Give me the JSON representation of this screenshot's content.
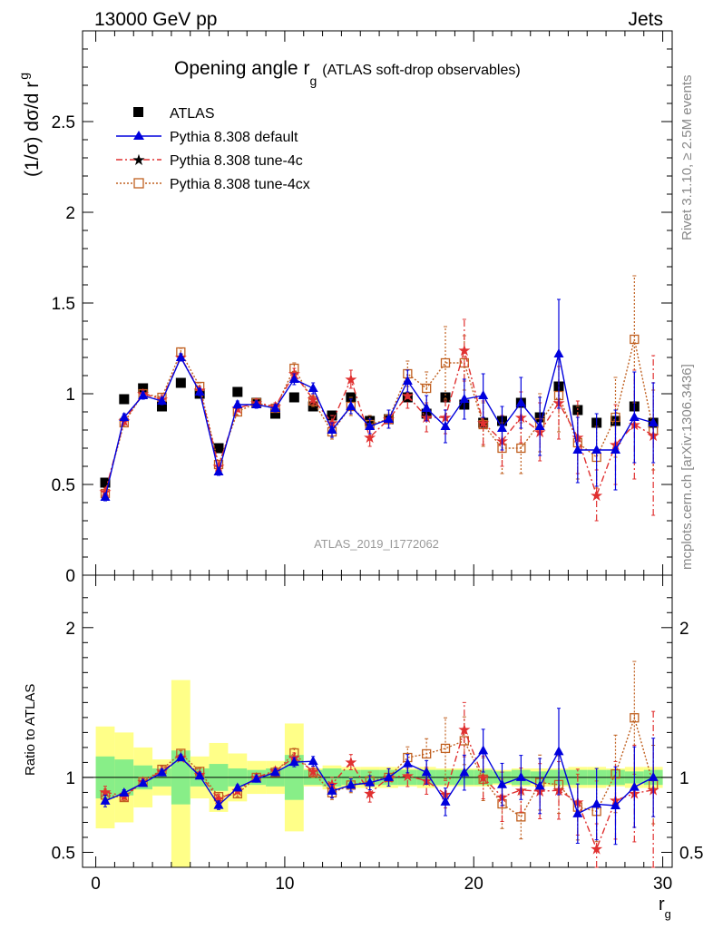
{
  "header": {
    "left": "13000 GeV pp",
    "right": "Jets"
  },
  "title": {
    "main": "Opening angle r",
    "sub": "g",
    "suffix": "(ATLAS soft-drop observables)"
  },
  "axes": {
    "ylabel_main_pre": "(1/σ) dσ/d r",
    "ylabel_main_sub": "g",
    "ylabel_ratio": "Ratio to ATLAS",
    "xlabel": "r",
    "xlabel_sub": "g"
  },
  "side_text": {
    "rivet": "Rivet 3.1.10, ≥ 2.5M events",
    "mcplots": "mcplots.cern.ch [arXiv:1306.3436]"
  },
  "watermark": "ATLAS_2019_I1772062",
  "legend": [
    {
      "name": "ATLAS",
      "key": "atlas"
    },
    {
      "name": "Pythia 8.308 default",
      "key": "def"
    },
    {
      "name": "Pythia 8.308 tune-4c",
      "key": "t4c"
    },
    {
      "name": "Pythia 8.308 tune-4cx",
      "key": "t4cx"
    }
  ],
  "colors": {
    "data": "#000000",
    "default": "#0000dd",
    "tune4c": "#e03030",
    "tune4cx": "#c06020",
    "band_inner": "#88ee88",
    "band_outer": "#ffff88"
  },
  "chart_data": {
    "type": "scatter",
    "x": [
      0.5,
      1.5,
      2.5,
      3.5,
      4.5,
      5.5,
      6.5,
      7.5,
      8.5,
      9.5,
      10.5,
      11.5,
      12.5,
      13.5,
      14.5,
      15.5,
      16.5,
      17.5,
      18.5,
      19.5,
      20.5,
      21.5,
      22.5,
      23.5,
      24.5,
      25.5,
      26.5,
      27.5,
      28.5,
      29.5
    ],
    "main_panel": {
      "xlim": [
        -0.7,
        30.5
      ],
      "ylim": [
        0,
        3.0
      ],
      "yticks": [
        0,
        0.5,
        1,
        1.5,
        2,
        2.5
      ],
      "ytick_labels": [
        "0",
        "0.5",
        "1",
        "1.5",
        "2",
        "2.5"
      ]
    },
    "ratio_panel": {
      "ylim": [
        0.4,
        2.35
      ],
      "yticks": [
        0.5,
        1,
        2
      ],
      "ytick_labels": [
        "0.5",
        "1",
        "2"
      ]
    },
    "xticks": [
      0,
      10,
      20,
      30
    ],
    "xtick_labels": [
      "0",
      "10",
      "20",
      "30"
    ],
    "atlas": [
      0.51,
      0.97,
      1.03,
      0.93,
      1.06,
      1.0,
      0.7,
      1.01,
      0.95,
      0.89,
      0.98,
      0.93,
      0.88,
      0.98,
      0.85,
      0.86,
      0.98,
      0.89,
      0.98,
      0.94,
      0.84,
      0.85,
      0.95,
      0.87,
      1.04,
      0.91,
      0.84,
      0.85,
      0.93,
      0.84
    ],
    "band_inner": [
      0.14,
      0.12,
      0.08,
      0.06,
      0.18,
      0.06,
      0.09,
      0.06,
      0.05,
      0.06,
      0.15,
      0.05,
      0.06,
      0.05,
      0.05,
      0.05,
      0.05,
      0.05,
      0.05,
      0.05,
      0.05,
      0.04,
      0.05,
      0.04,
      0.05,
      0.05,
      0.05,
      0.05,
      0.04,
      0.05
    ],
    "band_outer": [
      0.34,
      0.3,
      0.2,
      0.12,
      0.65,
      0.14,
      0.23,
      0.16,
      0.11,
      0.11,
      0.36,
      0.06,
      0.08,
      0.07,
      0.07,
      0.07,
      0.06,
      0.07,
      0.06,
      0.06,
      0.06,
      0.05,
      0.06,
      0.06,
      0.06,
      0.07,
      0.07,
      0.06,
      0.07,
      0.07
    ],
    "series": [
      {
        "name": "Pythia 8.308 default",
        "key": "def",
        "values": [
          0.43,
          0.87,
          0.99,
          0.96,
          1.2,
          1.01,
          0.57,
          0.94,
          0.94,
          0.92,
          1.08,
          1.03,
          0.8,
          0.93,
          0.82,
          0.86,
          1.07,
          0.92,
          0.82,
          0.97,
          0.99,
          0.81,
          0.95,
          0.82,
          1.22,
          0.69,
          0.69,
          0.69,
          0.87,
          0.84
        ],
        "errors": [
          0.02,
          0.02,
          0.02,
          0.02,
          0.02,
          0.02,
          0.02,
          0.02,
          0.02,
          0.02,
          0.03,
          0.03,
          0.04,
          0.04,
          0.04,
          0.05,
          0.06,
          0.07,
          0.09,
          0.11,
          0.12,
          0.12,
          0.14,
          0.16,
          0.3,
          0.18,
          0.2,
          0.22,
          0.25,
          0.22
        ]
      },
      {
        "name": "Pythia 8.308 tune-4c",
        "key": "t4c",
        "values": [
          0.46,
          0.85,
          1.0,
          0.97,
          1.2,
          1.02,
          0.6,
          0.92,
          0.95,
          0.93,
          1.11,
          0.97,
          0.84,
          1.08,
          0.76,
          0.86,
          0.99,
          0.87,
          0.87,
          1.24,
          0.84,
          0.74,
          0.87,
          0.79,
          0.95,
          0.76,
          0.44,
          0.72,
          0.83,
          0.77
        ],
        "errors": [
          0.02,
          0.02,
          0.02,
          0.02,
          0.02,
          0.02,
          0.02,
          0.02,
          0.02,
          0.02,
          0.03,
          0.03,
          0.04,
          0.05,
          0.05,
          0.05,
          0.07,
          0.08,
          0.09,
          0.17,
          0.12,
          0.14,
          0.14,
          0.16,
          0.2,
          0.2,
          0.14,
          0.22,
          0.3,
          0.44
        ]
      },
      {
        "name": "Pythia 8.308 tune-4cx",
        "key": "t4cx",
        "values": [
          0.45,
          0.84,
          1.0,
          0.98,
          1.23,
          1.04,
          0.61,
          0.9,
          0.95,
          0.92,
          1.14,
          0.96,
          0.79,
          0.93,
          0.83,
          0.86,
          1.11,
          1.03,
          1.17,
          1.17,
          0.83,
          0.7,
          0.7,
          0.84,
          0.99,
          0.73,
          0.65,
          0.87,
          1.3,
          0.8
        ],
        "errors": [
          0.02,
          0.02,
          0.02,
          0.02,
          0.02,
          0.02,
          0.02,
          0.02,
          0.02,
          0.02,
          0.03,
          0.03,
          0.04,
          0.05,
          0.05,
          0.05,
          0.07,
          0.09,
          0.2,
          0.15,
          0.12,
          0.14,
          0.14,
          0.16,
          0.2,
          0.2,
          0.17,
          0.22,
          0.35,
          0.22
        ]
      }
    ]
  }
}
